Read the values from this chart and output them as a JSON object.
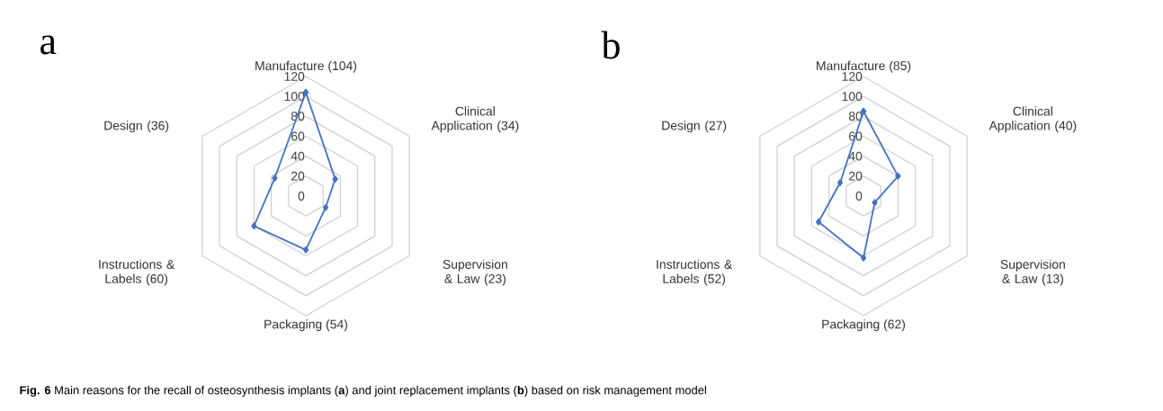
{
  "chart_data": [
    {
      "type": "radar",
      "title": "a",
      "categories": [
        "Manufacture (104)",
        "Clinical Application (34)",
        "Supervision & Law (23)",
        "Packaging (54)",
        "Instructions & Labels (60)",
        "Design (36)"
      ],
      "series": [
        {
          "color": "#4472c4",
          "values": [
            104,
            34,
            23,
            54,
            60,
            36
          ]
        }
      ],
      "ylim": [
        0,
        120
      ],
      "yticks": [
        0,
        20,
        40,
        60,
        80,
        100,
        120
      ],
      "grid": true,
      "marker": "diamond",
      "annotations": [
        "**Fig. 6** Main reasons for the recall of osteosynthesis implants (**a**) and joint replacement implants (**b**) based on risk management model"
      ]
    },
    {
      "type": "radar",
      "title": "b",
      "categories": [
        "Manufacture (85)",
        "Clinical Application (40)",
        "Supervision & Law (13)",
        "Packaging (62)",
        "Instructions & Labels (52)",
        "Design (27)"
      ],
      "series": [
        {
          "color": "#4472c4",
          "values": [
            85,
            40,
            13,
            62,
            52,
            27
          ]
        }
      ],
      "ylim": [
        0,
        120
      ],
      "yticks": [
        0,
        20,
        40,
        60,
        80,
        100,
        120
      ],
      "grid": true,
      "marker": "diamond"
    }
  ]
}
